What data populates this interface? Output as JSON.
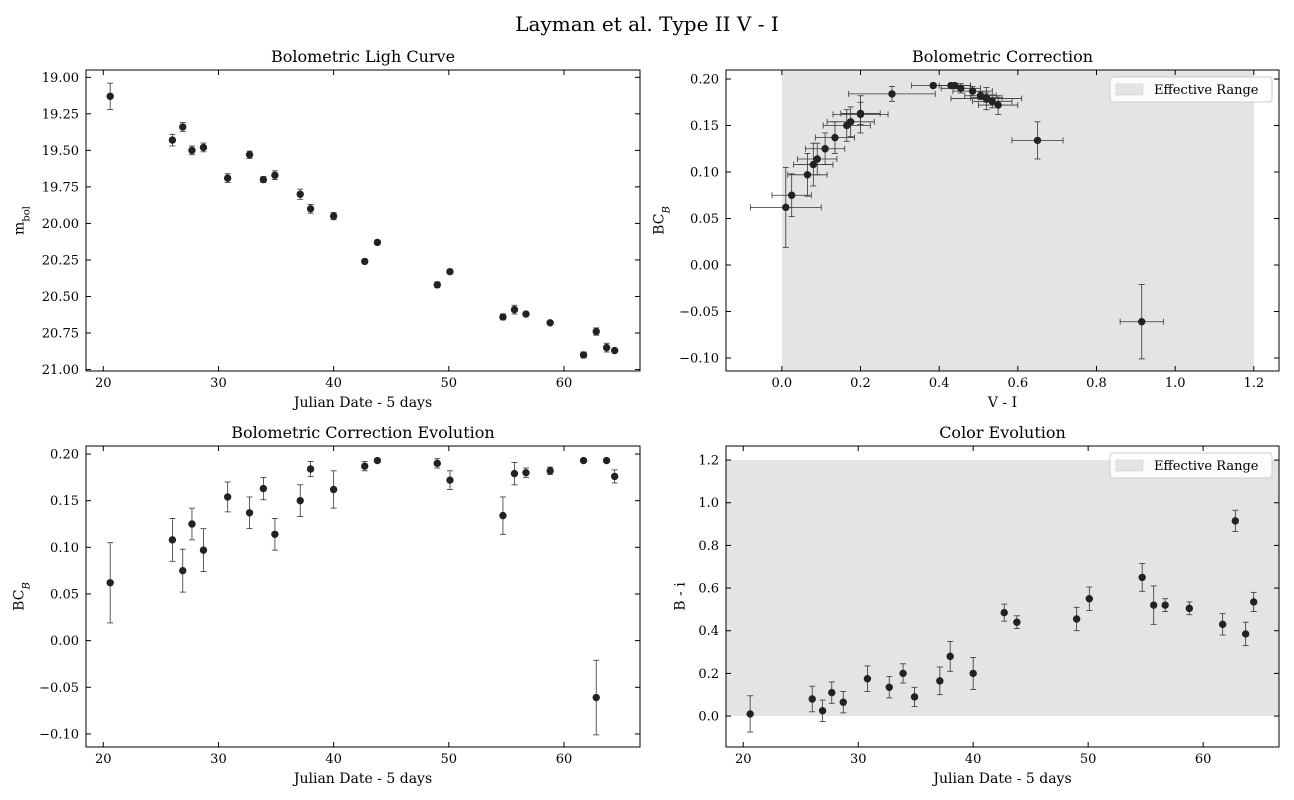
{
  "title": "Layman et al. Type II V - I",
  "chart_data": [
    {
      "type": "errorbar",
      "title": "Bolometric Ligh Curve",
      "xlabel": "Julian Date - 5 days",
      "ylabel": {
        "base": "m",
        "sub": "bol"
      },
      "sub_style": "normal",
      "color": "#222222",
      "x": [
        20.6,
        26.0,
        26.9,
        27.7,
        28.7,
        30.8,
        32.7,
        33.9,
        34.9,
        37.1,
        38.0,
        40.0,
        42.7,
        43.8,
        49.0,
        50.1,
        54.7,
        55.7,
        56.7,
        58.8,
        61.7,
        62.8,
        63.7,
        64.4
      ],
      "values": [
        19.13,
        19.43,
        19.34,
        19.5,
        19.48,
        19.69,
        19.53,
        19.7,
        19.67,
        19.8,
        19.9,
        19.95,
        20.26,
        20.13,
        20.42,
        20.33,
        20.64,
        20.59,
        20.62,
        20.68,
        20.9,
        20.74,
        20.85,
        20.87
      ],
      "yerr": [
        0.09,
        0.04,
        0.03,
        0.03,
        0.03,
        0.03,
        0.025,
        0.02,
        0.03,
        0.035,
        0.03,
        0.025,
        0.01,
        0.01,
        0.02,
        0.015,
        0.02,
        0.03,
        0.01,
        0.01,
        0.02,
        0.025,
        0.03,
        0.01
      ],
      "xlim": [
        18.5,
        66.6
      ],
      "ylim": [
        21.01,
        18.95
      ],
      "xticks": [
        20,
        30,
        40,
        50,
        60
      ],
      "yticks": [
        {
          "value": 19.0,
          "label": "19.00"
        },
        {
          "value": 19.25,
          "label": "19.25"
        },
        {
          "value": 19.5,
          "label": "19.50"
        },
        {
          "value": 19.75,
          "label": "19.75"
        },
        {
          "value": 20.0,
          "label": "20.00"
        },
        {
          "value": 20.25,
          "label": "20.25"
        },
        {
          "value": 20.5,
          "label": "20.50"
        },
        {
          "value": 20.75,
          "label": "20.75"
        },
        {
          "value": 21.0,
          "label": "21.00"
        }
      ]
    },
    {
      "type": "errorbar",
      "title": "Bolometric Correction",
      "xlabel": "V - I",
      "ylabel": {
        "base": "BC",
        "sub": "B"
      },
      "sub_style": "italic",
      "color": "#222222",
      "x": [
        0.01,
        0.08,
        0.025,
        0.11,
        0.065,
        0.175,
        0.135,
        0.2,
        0.09,
        0.165,
        0.28,
        0.2,
        0.485,
        0.44,
        0.455,
        0.55,
        0.65,
        0.52,
        0.52,
        0.505,
        0.43,
        0.915,
        0.385,
        0.535
      ],
      "values": [
        0.062,
        0.108,
        0.075,
        0.125,
        0.097,
        0.154,
        0.137,
        0.163,
        0.114,
        0.15,
        0.184,
        0.162,
        0.187,
        0.193,
        0.19,
        0.172,
        0.134,
        0.179,
        0.18,
        0.182,
        0.193,
        -0.061,
        0.193,
        0.176
      ],
      "xerr": [
        0.09,
        0.05,
        0.05,
        0.05,
        0.05,
        0.06,
        0.05,
        0.05,
        0.05,
        0.06,
        0.11,
        0.07,
        0.05,
        0.04,
        0.05,
        0.05,
        0.065,
        0.09,
        0.04,
        0.04,
        0.05,
        0.055,
        0.055,
        0.05
      ],
      "yerr": [
        0.043,
        0.023,
        0.023,
        0.017,
        0.023,
        0.016,
        0.017,
        0.012,
        0.017,
        0.017,
        0.008,
        0.02,
        0.005,
        0.002,
        0.005,
        0.01,
        0.02,
        0.012,
        0.005,
        0.004,
        0.002,
        0.04,
        0.002,
        0.007
      ],
      "span": {
        "axis": "x",
        "from": 0,
        "to": 1.2,
        "name": "Effective Range",
        "color": "#e4e4e4"
      },
      "legend": "upper right",
      "xlim": [
        -0.142,
        1.264
      ],
      "ylim": [
        -0.114,
        0.2097
      ],
      "xticks": [
        {
          "value": 0,
          "label": "0.0"
        },
        {
          "value": 0.2,
          "label": "0.2"
        },
        {
          "value": 0.4,
          "label": "0.4"
        },
        {
          "value": 0.6,
          "label": "0.6"
        },
        {
          "value": 0.8,
          "label": "0.8"
        },
        {
          "value": 1.0,
          "label": "1.0"
        },
        {
          "value": 1.2,
          "label": "1.2"
        }
      ],
      "yticks": [
        {
          "value": -0.1,
          "label": "−0.10"
        },
        {
          "value": -0.05,
          "label": "−0.05"
        },
        {
          "value": 0,
          "label": "0.00"
        },
        {
          "value": 0.05,
          "label": "0.05"
        },
        {
          "value": 0.1,
          "label": "0.10"
        },
        {
          "value": 0.15,
          "label": "0.15"
        },
        {
          "value": 0.2,
          "label": "0.20"
        }
      ]
    },
    {
      "type": "errorbar",
      "title": "Bolometric Correction Evolution",
      "xlabel": "Julian Date - 5 days",
      "ylabel": {
        "base": "BC",
        "sub": "B"
      },
      "sub_style": "italic",
      "color": "#222222",
      "x": [
        20.6,
        26.0,
        26.9,
        27.7,
        28.7,
        30.8,
        32.7,
        33.9,
        34.9,
        37.1,
        38.0,
        40.0,
        42.7,
        43.8,
        49.0,
        50.1,
        54.7,
        55.7,
        56.7,
        58.8,
        61.7,
        62.8,
        63.7,
        64.4
      ],
      "values": [
        0.062,
        0.108,
        0.075,
        0.125,
        0.097,
        0.154,
        0.137,
        0.163,
        0.114,
        0.15,
        0.184,
        0.162,
        0.187,
        0.193,
        0.19,
        0.172,
        0.134,
        0.179,
        0.18,
        0.182,
        0.193,
        -0.061,
        0.193,
        0.176
      ],
      "yerr": [
        0.043,
        0.023,
        0.023,
        0.017,
        0.023,
        0.016,
        0.017,
        0.012,
        0.017,
        0.017,
        0.008,
        0.02,
        0.005,
        0.002,
        0.005,
        0.01,
        0.02,
        0.012,
        0.005,
        0.004,
        0.002,
        0.04,
        0.002,
        0.007
      ],
      "xlim": [
        18.5,
        66.6
      ],
      "ylim": [
        -0.114,
        0.2086
      ],
      "xticks": [
        20,
        30,
        40,
        50,
        60
      ],
      "yticks": [
        {
          "value": -0.1,
          "label": "−0.10"
        },
        {
          "value": -0.05,
          "label": "−0.05"
        },
        {
          "value": 0,
          "label": "0.00"
        },
        {
          "value": 0.05,
          "label": "0.05"
        },
        {
          "value": 0.1,
          "label": "0.10"
        },
        {
          "value": 0.15,
          "label": "0.15"
        },
        {
          "value": 0.2,
          "label": "0.20"
        }
      ]
    },
    {
      "type": "errorbar",
      "title": "Color Evolution",
      "xlabel": "Julian Date - 5 days",
      "ylabel": {
        "base": "B - i"
      },
      "color": "#222222",
      "x": [
        20.6,
        26.0,
        26.9,
        27.7,
        28.7,
        30.8,
        32.7,
        33.9,
        34.9,
        37.1,
        38.0,
        40.0,
        42.7,
        43.8,
        49.0,
        50.1,
        54.7,
        55.7,
        56.7,
        58.8,
        61.7,
        62.8,
        63.7,
        64.4
      ],
      "values": [
        0.01,
        0.08,
        0.025,
        0.11,
        0.065,
        0.175,
        0.135,
        0.2,
        0.09,
        0.165,
        0.28,
        0.2,
        0.485,
        0.44,
        0.455,
        0.55,
        0.65,
        0.52,
        0.52,
        0.505,
        0.43,
        0.915,
        0.385,
        0.535
      ],
      "yerr": [
        0.085,
        0.06,
        0.05,
        0.05,
        0.05,
        0.06,
        0.05,
        0.045,
        0.045,
        0.065,
        0.07,
        0.075,
        0.04,
        0.03,
        0.055,
        0.055,
        0.065,
        0.09,
        0.03,
        0.03,
        0.05,
        0.05,
        0.055,
        0.045
      ],
      "span": {
        "axis": "y",
        "from": 0,
        "to": 1.2,
        "name": "Effective Range",
        "color": "#e4e4e4"
      },
      "legend": "upper right",
      "xlim": [
        18.5,
        66.6
      ],
      "ylim": [
        -0.145,
        1.266
      ],
      "xticks": [
        20,
        30,
        40,
        50,
        60
      ],
      "yticks": [
        {
          "value": 0,
          "label": "0.0"
        },
        {
          "value": 0.2,
          "label": "0.2"
        },
        {
          "value": 0.4,
          "label": "0.4"
        },
        {
          "value": 0.6,
          "label": "0.6"
        },
        {
          "value": 0.8,
          "label": "0.8"
        },
        {
          "value": 1.0,
          "label": "1.0"
        },
        {
          "value": 1.2,
          "label": "1.2"
        }
      ]
    }
  ]
}
